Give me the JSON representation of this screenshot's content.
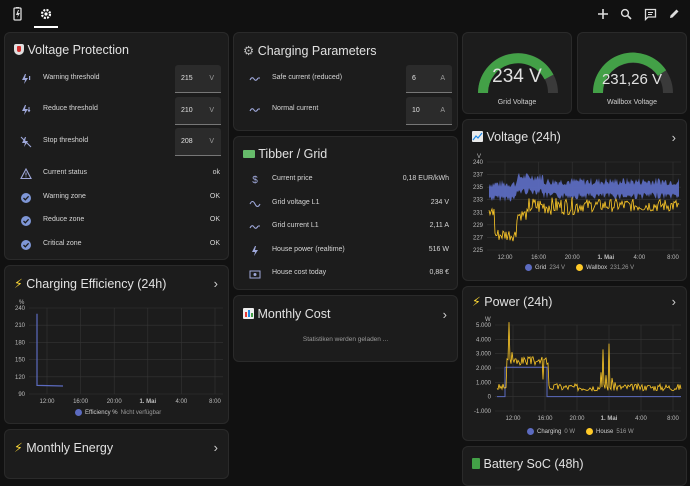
{
  "toolbar": {
    "icons": [
      "battery-charge-icon",
      "settings-icon",
      "plus-icon",
      "search-icon",
      "assist-icon",
      "pencil-icon"
    ]
  },
  "voltage_protection": {
    "title": "Voltage Protection",
    "inputs": [
      {
        "label": "Warning threshold",
        "value": "215",
        "unit": "V"
      },
      {
        "label": "Reduce threshold",
        "value": "210",
        "unit": "V"
      },
      {
        "label": "Stop threshold",
        "value": "208",
        "unit": "V"
      }
    ],
    "status": [
      {
        "label": "Current status",
        "value": "ok"
      },
      {
        "label": "Warning zone",
        "value": "OK"
      },
      {
        "label": "Reduce zone",
        "value": "OK"
      },
      {
        "label": "Critical zone",
        "value": "OK"
      }
    ]
  },
  "charging_params": {
    "title": "Charging Parameters",
    "inputs": [
      {
        "label": "Safe current (reduced)",
        "value": "6",
        "unit": "A"
      },
      {
        "label": "Normal current",
        "value": "10",
        "unit": "A"
      }
    ]
  },
  "tibber": {
    "title": "Tibber / Grid",
    "rows": [
      {
        "label": "Current price",
        "value": "0,18 EUR/kWh"
      },
      {
        "label": "Grid voltage L1",
        "value": "234 V"
      },
      {
        "label": "Grid current L1",
        "value": "2,11 A"
      },
      {
        "label": "House power (realtime)",
        "value": "516 W"
      },
      {
        "label": "House cost today",
        "value": "0,88 €"
      }
    ]
  },
  "monthly_cost": {
    "title": "Monthly Cost",
    "message": "Statistiken werden geladen ..."
  },
  "gauges": [
    {
      "value": "234 V",
      "label": "Grid Voltage",
      "fraction": 0.85,
      "color": "#43a047"
    },
    {
      "value": "231,26 V",
      "label": "Wallbox Voltage",
      "fraction": 0.8,
      "color": "#43a047"
    }
  ],
  "charging_efficiency": {
    "title": "Charging Efficiency (24h)",
    "legend": "Efficiency %",
    "legend_note": "Nicht verfügbar"
  },
  "monthly_energy": {
    "title": "Monthly Energy"
  },
  "voltage_24h": {
    "title": "Voltage (24h)"
  },
  "power_24h": {
    "title": "Power (24h)"
  },
  "battery_soc": {
    "title": "Battery SoC (48h)"
  },
  "chart_data": [
    {
      "type": "line",
      "title": "Voltage (24h)",
      "ylabel": "V",
      "ylim": [
        225,
        240
      ],
      "yticks": [
        "240",
        "237",
        "235",
        "233",
        "231",
        "229",
        "227",
        "225"
      ],
      "xticks": [
        "12:00",
        "16:00",
        "20:00",
        "1. Mai",
        "4:00",
        "8:00"
      ],
      "series": [
        {
          "name": "Grid",
          "current": "234 V",
          "color": "#5c6bc0"
        },
        {
          "name": "Wallbox",
          "current": "231,26 V",
          "color": "#ffca28"
        }
      ],
      "grid": true,
      "legend": "bottom"
    },
    {
      "type": "line",
      "title": "Power (24h)",
      "ylabel": "W",
      "ylim": [
        -1000,
        5000
      ],
      "yticks": [
        "5.000",
        "4.000",
        "3.000",
        "2.000",
        "1.000",
        "0",
        "-1.000"
      ],
      "xticks": [
        "12:00",
        "16:00",
        "20:00",
        "1. Mai",
        "4:00",
        "8:00"
      ],
      "series": [
        {
          "name": "Charging",
          "current": "0 W",
          "color": "#5c6bc0"
        },
        {
          "name": "House",
          "current": "516 W",
          "color": "#ffca28"
        }
      ],
      "grid": true,
      "legend": "bottom"
    },
    {
      "type": "line",
      "title": "Charging Efficiency (24h)",
      "ylabel": "%",
      "ylim": [
        90,
        240
      ],
      "yticks": [
        "240",
        "210",
        "180",
        "150",
        "120",
        "90"
      ],
      "xticks": [
        "12:00",
        "16:00",
        "20:00",
        "1. Mai",
        "4:00",
        "8:00"
      ],
      "series": [
        {
          "name": "Efficiency %",
          "color": "#5c6bc0",
          "x": [
            "10:40",
            "10:40",
            "12:00"
          ],
          "values": [
            230,
            105,
            104
          ]
        }
      ],
      "grid": true,
      "legend": "bottom"
    }
  ]
}
